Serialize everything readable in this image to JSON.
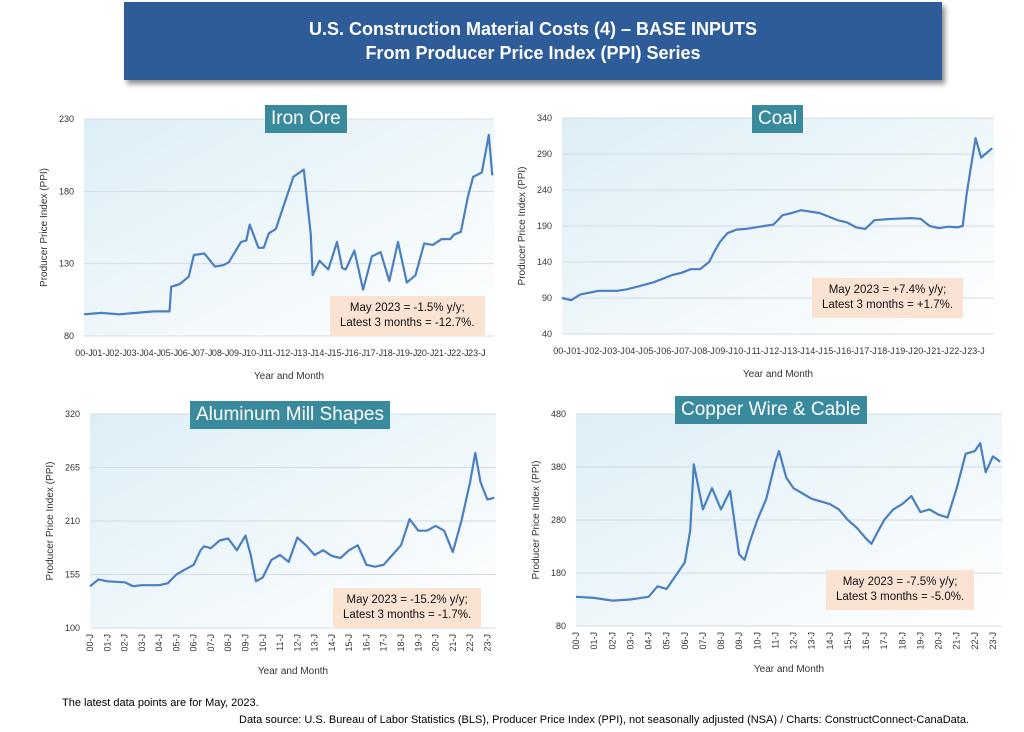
{
  "header": {
    "line1": "U.S. Construction Material Costs (4) – BASE INPUTS",
    "line2": "From Producer Price Index (PPI) Series"
  },
  "footer": {
    "note": "The latest data points are for May, 2023.",
    "source": "Data source: U.S. Bureau of Labor Statistics (BLS), Producer Price Index (PPI), not seasonally adjusted (NSA) / Charts: ConstructConnect-CanaData."
  },
  "colors": {
    "line": "#4a7fc0",
    "title_bg": "#3a8a9e",
    "annotation_bg": "#fbe3d3",
    "banner_bg": "#2e5c98"
  },
  "chart_data": [
    {
      "type": "line",
      "title": "Iron Ore",
      "xlabel": "Year and Month",
      "ylabel": "Producer Price Index (PPI)",
      "ylim": [
        80,
        230
      ],
      "yticks": [
        80,
        130,
        180,
        230
      ],
      "xtick_style": "horizontal",
      "xtick_labels": [
        "00-J",
        "01-J",
        "02-J",
        "03-J",
        "04-J",
        "05-J",
        "06-J",
        "07-J",
        "08-J",
        "09-J",
        "10-J",
        "11-J",
        "12-J",
        "13-J",
        "14-J",
        "15-J",
        "16-J",
        "17-J",
        "18-J",
        "19-J",
        "20-J",
        "21-J",
        "22-J",
        "23-J"
      ],
      "annotation": [
        "May 2023 = -1.5% y/y;",
        "Latest 3 months = -12.7%."
      ],
      "series": [
        {
          "name": "Iron Ore PPI",
          "x": [
            2000,
            2001,
            2002,
            2003,
            2004,
            2004.9,
            2005,
            2005.5,
            2006,
            2006.3,
            2006.9,
            2007.5,
            2008,
            2008.3,
            2009,
            2009.3,
            2009.5,
            2010,
            2010.3,
            2010.6,
            2011,
            2011.5,
            2012,
            2012.6,
            2013,
            2013.1,
            2013.5,
            2014,
            2014.5,
            2014.8,
            2015,
            2015.5,
            2016,
            2016.5,
            2017,
            2017.5,
            2018,
            2018.5,
            2019,
            2019.5,
            2020,
            2020.5,
            2021,
            2021.2,
            2021.6,
            2022,
            2022.3,
            2022.8,
            2023.2,
            2023.4
          ],
          "y": [
            95,
            96,
            95,
            96,
            97,
            97,
            114,
            116,
            121,
            136,
            137,
            128,
            129,
            131,
            145,
            146,
            157,
            141,
            141,
            151,
            154,
            172,
            190,
            195,
            150,
            122,
            132,
            126,
            145,
            127,
            126,
            139,
            112,
            135,
            138,
            118,
            145,
            117,
            122,
            144,
            143,
            147,
            147,
            150,
            152,
            176,
            190,
            193,
            219,
            191
          ]
        }
      ]
    },
    {
      "type": "line",
      "title": "Coal",
      "xlabel": "Year and Month",
      "ylabel": "Producer Price Index (PPI)",
      "ylim": [
        40,
        340
      ],
      "yticks": [
        40,
        90,
        140,
        190,
        240,
        290,
        340
      ],
      "xtick_style": "horizontal",
      "xtick_labels": [
        "00-J",
        "01-J",
        "02-J",
        "03-J",
        "04-J",
        "05-J",
        "06-J",
        "07-J",
        "08-J",
        "09-J",
        "10-J",
        "11-J",
        "12-J",
        "13-J",
        "14-J",
        "15-J",
        "16-J",
        "17-J",
        "18-J",
        "19-J",
        "20-J",
        "21-J",
        "22-J",
        "23-J"
      ],
      "annotation": [
        "May 2023 = +7.4% y/y;",
        "Latest 3 months = +1.7%."
      ],
      "series": [
        {
          "name": "Coal PPI",
          "x": [
            2000,
            2000.5,
            2001,
            2002,
            2003,
            2003.5,
            2004,
            2005,
            2006,
            2006.5,
            2007,
            2007.5,
            2008,
            2008.3,
            2008.6,
            2009,
            2009.5,
            2010,
            2011,
            2011.5,
            2012,
            2012.5,
            2013,
            2014,
            2015,
            2015.5,
            2016,
            2016.5,
            2017,
            2018,
            2019,
            2019.5,
            2020,
            2020.5,
            2021,
            2021.5,
            2021.8,
            2022,
            2022.2,
            2022.5,
            2022.8,
            2023.4
          ],
          "y": [
            90,
            87,
            95,
            100,
            100,
            102,
            105,
            112,
            122,
            125,
            130,
            130,
            140,
            155,
            168,
            180,
            185,
            186,
            190,
            192,
            205,
            208,
            212,
            208,
            198,
            195,
            188,
            186,
            198,
            200,
            201,
            200,
            190,
            187,
            189,
            188,
            190,
            232,
            265,
            312,
            285,
            298
          ]
        }
      ]
    },
    {
      "type": "line",
      "title": "Aluminum Mill Shapes",
      "xlabel": "Year and Month",
      "ylabel": "Producer Price Index (PPI)",
      "ylim": [
        100,
        320
      ],
      "yticks": [
        100,
        155,
        210,
        265,
        320
      ],
      "xtick_style": "rotated",
      "xtick_labels": [
        "00-J",
        "01-J",
        "02-J",
        "03-J",
        "04-J",
        "05-J",
        "06-J",
        "07-J",
        "08-J",
        "09-J",
        "10-J",
        "11-J",
        "12-J",
        "13-J",
        "14-J",
        "15-J",
        "16-J",
        "17-J",
        "18-J",
        "19-J",
        "20-J",
        "21-J",
        "22-J",
        "23-J"
      ],
      "annotation": [
        "May 2023 = -15.2% y/y;",
        "Latest 3 months = -1.7%."
      ],
      "series": [
        {
          "name": "Aluminum PPI",
          "x": [
            2000,
            2000.5,
            2001,
            2002,
            2002.5,
            2003,
            2004,
            2004.5,
            2005,
            2005.5,
            2006,
            2006.4,
            2006.6,
            2007,
            2007.5,
            2008,
            2008.5,
            2009,
            2009.3,
            2009.6,
            2010,
            2010.5,
            2011,
            2011.5,
            2012,
            2012.5,
            2013,
            2013.5,
            2014,
            2014.5,
            2015,
            2015.5,
            2016,
            2016.5,
            2017,
            2017.5,
            2018,
            2018.5,
            2019,
            2019.5,
            2020,
            2020.5,
            2021,
            2021.5,
            2022,
            2022.3,
            2022.6,
            2023,
            2023.4
          ],
          "y": [
            143,
            150,
            148,
            147,
            143,
            144,
            144,
            146,
            155,
            160,
            165,
            180,
            184,
            182,
            190,
            192,
            180,
            195,
            175,
            148,
            152,
            170,
            175,
            168,
            193,
            185,
            175,
            180,
            174,
            172,
            180,
            185,
            165,
            163,
            165,
            175,
            185,
            212,
            200,
            200,
            205,
            200,
            178,
            210,
            250,
            280,
            250,
            232,
            234
          ]
        }
      ]
    },
    {
      "type": "line",
      "title": "Copper Wire & Cable",
      "xlabel": "Year and Month",
      "ylabel": "Producer Price Index (PPI)",
      "ylim": [
        80,
        480
      ],
      "yticks": [
        80,
        180,
        280,
        380,
        480
      ],
      "xtick_style": "rotated",
      "xtick_labels": [
        "00-J",
        "01-J",
        "02-J",
        "03-J",
        "04-J",
        "05-J",
        "06-J",
        "07-J",
        "08-J",
        "09-J",
        "10-J",
        "11-J",
        "12-J",
        "13-J",
        "14-J",
        "15-J",
        "16-J",
        "17-J",
        "18-J",
        "19-J",
        "20-J",
        "21-J",
        "22-J",
        "23-J"
      ],
      "annotation": [
        "May 2023 = -7.5% y/y;",
        "Latest 3 months = -5.0%."
      ],
      "series": [
        {
          "name": "Copper Wire & Cable PPI",
          "x": [
            2000,
            2001,
            2002,
            2003,
            2004,
            2004.5,
            2005,
            2005.5,
            2006,
            2006.3,
            2006.5,
            2007,
            2007.5,
            2008,
            2008.5,
            2009,
            2009.3,
            2009.6,
            2010,
            2010.5,
            2011,
            2011.2,
            2011.6,
            2012,
            2012.5,
            2013,
            2014,
            2014.5,
            2015,
            2015.5,
            2016,
            2016.3,
            2016.6,
            2017,
            2017.5,
            2018,
            2018.5,
            2019,
            2019.5,
            2020,
            2020.5,
            2021,
            2021.5,
            2022,
            2022.3,
            2022.6,
            2023,
            2023.4
          ],
          "y": [
            135,
            133,
            128,
            130,
            135,
            155,
            150,
            175,
            200,
            260,
            385,
            300,
            340,
            300,
            335,
            215,
            205,
            240,
            280,
            320,
            390,
            410,
            360,
            340,
            330,
            320,
            310,
            300,
            280,
            265,
            245,
            235,
            255,
            280,
            300,
            310,
            325,
            295,
            300,
            290,
            285,
            340,
            405,
            410,
            425,
            370,
            400,
            390
          ]
        }
      ]
    }
  ]
}
